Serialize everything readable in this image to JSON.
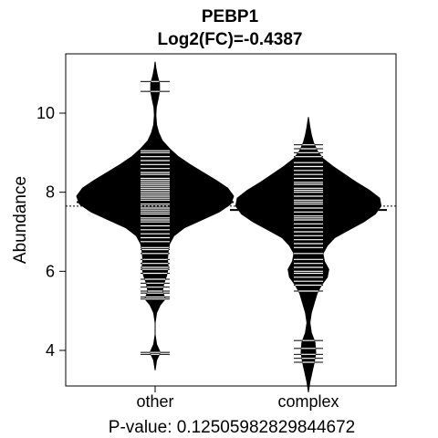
{
  "chart_data": {
    "type": "beanplot",
    "title": "PEBP1",
    "subtitle": "Log2(FC)=-0.4387",
    "xlabel": "P-value: 0.12505982829844672",
    "ylabel": "Abundance",
    "ylim": [
      3.1,
      11.5
    ],
    "yticks": [
      4,
      6,
      8,
      10
    ],
    "overall_mean_line": 7.65,
    "grid": false,
    "categories": [
      "other",
      "complex"
    ],
    "groups": [
      {
        "name": "other",
        "mean": 7.75,
        "min": 3.5,
        "max": 11.3,
        "density_profile": [
          [
            3.5,
            0.0
          ],
          [
            3.75,
            0.01
          ],
          [
            3.95,
            0.035
          ],
          [
            4.15,
            0.01
          ],
          [
            4.4,
            0.0
          ],
          [
            4.7,
            0.0
          ],
          [
            4.95,
            0.01
          ],
          [
            5.15,
            0.035
          ],
          [
            5.3,
            0.07
          ],
          [
            5.5,
            0.05
          ],
          [
            5.7,
            0.06
          ],
          [
            5.9,
            0.08
          ],
          [
            6.1,
            0.09
          ],
          [
            6.3,
            0.085
          ],
          [
            6.5,
            0.09
          ],
          [
            6.7,
            0.1
          ],
          [
            6.9,
            0.13
          ],
          [
            7.1,
            0.2
          ],
          [
            7.3,
            0.32
          ],
          [
            7.5,
            0.44
          ],
          [
            7.7,
            0.52
          ],
          [
            7.9,
            0.54
          ],
          [
            8.1,
            0.5
          ],
          [
            8.3,
            0.42
          ],
          [
            8.5,
            0.33
          ],
          [
            8.7,
            0.24
          ],
          [
            8.9,
            0.16
          ],
          [
            9.1,
            0.1
          ],
          [
            9.3,
            0.05
          ],
          [
            9.5,
            0.025
          ],
          [
            9.7,
            0.01
          ],
          [
            9.95,
            0.005
          ],
          [
            10.15,
            0.008
          ],
          [
            10.35,
            0.02
          ],
          [
            10.55,
            0.03
          ],
          [
            10.75,
            0.03
          ],
          [
            10.95,
            0.015
          ],
          [
            11.15,
            0.005
          ],
          [
            11.3,
            0.0
          ]
        ],
        "observations": [
          3.9,
          3.95,
          5.3,
          5.35,
          5.45,
          5.5,
          5.6,
          5.7,
          5.8,
          5.95,
          6.05,
          6.1,
          6.2,
          6.3,
          6.45,
          6.55,
          6.6,
          6.75,
          6.85,
          6.95,
          7.05,
          7.15,
          7.25,
          7.3,
          7.35,
          7.45,
          7.5,
          7.55,
          7.6,
          7.65,
          7.7,
          7.75,
          7.8,
          7.85,
          7.9,
          7.95,
          8.0,
          8.05,
          8.1,
          8.15,
          8.2,
          8.25,
          8.3,
          8.35,
          8.45,
          8.5,
          8.6,
          8.7,
          8.8,
          8.9,
          9.0,
          9.05,
          10.55,
          10.8
        ]
      },
      {
        "name": "complex",
        "mean": 7.55,
        "min": 2.95,
        "max": 9.9,
        "density_profile": [
          [
            2.95,
            0.0
          ],
          [
            3.2,
            0.01
          ],
          [
            3.45,
            0.025
          ],
          [
            3.7,
            0.04
          ],
          [
            3.95,
            0.05
          ],
          [
            4.2,
            0.045
          ],
          [
            4.45,
            0.02
          ],
          [
            4.7,
            0.01
          ],
          [
            4.95,
            0.02
          ],
          [
            5.2,
            0.04
          ],
          [
            5.45,
            0.06
          ],
          [
            5.65,
            0.09
          ],
          [
            5.85,
            0.13
          ],
          [
            6.05,
            0.14
          ],
          [
            6.25,
            0.11
          ],
          [
            6.45,
            0.1
          ],
          [
            6.65,
            0.13
          ],
          [
            6.85,
            0.18
          ],
          [
            7.05,
            0.28
          ],
          [
            7.25,
            0.38
          ],
          [
            7.45,
            0.46
          ],
          [
            7.65,
            0.5
          ],
          [
            7.85,
            0.49
          ],
          [
            8.05,
            0.42
          ],
          [
            8.25,
            0.33
          ],
          [
            8.45,
            0.25
          ],
          [
            8.65,
            0.17
          ],
          [
            8.85,
            0.1
          ],
          [
            9.05,
            0.06
          ],
          [
            9.25,
            0.035
          ],
          [
            9.45,
            0.02
          ],
          [
            9.65,
            0.01
          ],
          [
            9.9,
            0.0
          ]
        ],
        "observations": [
          3.7,
          3.8,
          3.9,
          4.05,
          4.25,
          5.5,
          5.65,
          5.75,
          5.85,
          5.95,
          6.0,
          6.1,
          6.2,
          6.3,
          6.45,
          6.6,
          6.7,
          6.8,
          6.9,
          7.0,
          7.1,
          7.2,
          7.3,
          7.35,
          7.4,
          7.5,
          7.55,
          7.6,
          7.7,
          7.75,
          7.8,
          7.9,
          8.0,
          8.05,
          8.1,
          8.2,
          8.25,
          8.35,
          8.45,
          8.55,
          8.65,
          8.75,
          8.9,
          9.0,
          9.1,
          9.2
        ]
      }
    ]
  }
}
